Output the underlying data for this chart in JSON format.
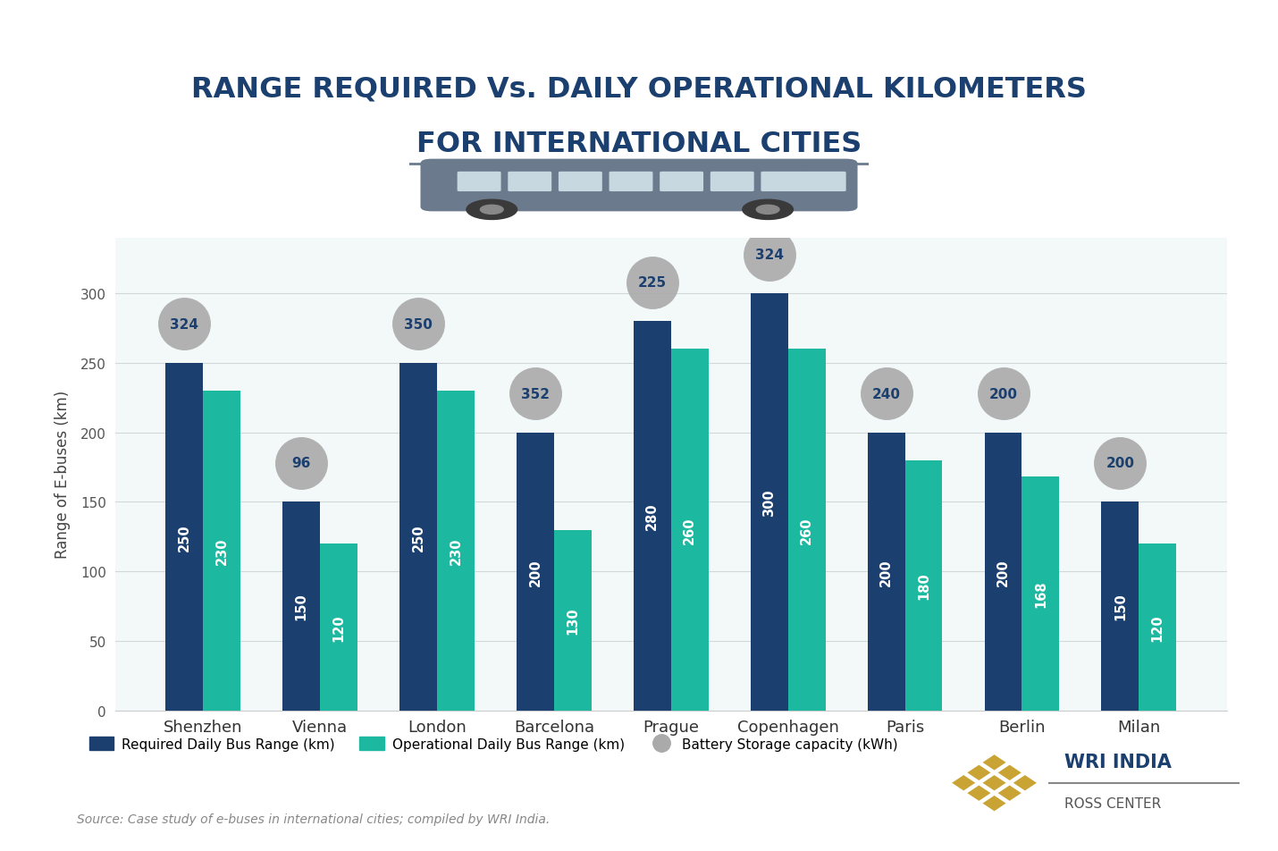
{
  "title_line1": "RANGE REQUIRED Vs. DAILY OPERATIONAL KILOMETERS",
  "title_line2": "FOR INTERNATIONAL CITIES",
  "cities": [
    "Shenzhen",
    "Vienna",
    "London",
    "Barcelona",
    "Prague",
    "Copenhagen",
    "Paris",
    "Berlin",
    "Milan"
  ],
  "required_range": [
    250,
    150,
    250,
    200,
    280,
    300,
    200,
    200,
    150
  ],
  "operational_range": [
    230,
    120,
    230,
    130,
    260,
    260,
    180,
    168,
    120
  ],
  "battery_capacity": [
    324,
    96,
    350,
    352,
    225,
    324,
    240,
    200,
    200
  ],
  "bar_color_required": "#1b3f6e",
  "bar_color_operational": "#1cb8a0",
  "bubble_color": "#aaaaaa",
  "bubble_text_color": "#1b3f6e",
  "ylabel": "Range of E-buses (km)",
  "ylim": [
    0,
    340
  ],
  "yticks": [
    0,
    50,
    100,
    150,
    200,
    250,
    300
  ],
  "legend_required": "Required Daily Bus Range (km)",
  "legend_operational": "Operational Daily Bus Range (km)",
  "legend_battery": "Battery Storage capacity (kWh)",
  "source_text": "Source: Case study of e-buses in international cities; compiled by WRI India.",
  "background_color": "#ffffff",
  "bar_width": 0.32,
  "title_color": "#1b3f6e",
  "title_fontsize": 23,
  "bar_value_fontsize": 10.5,
  "bubble_fontsize": 11,
  "grid_color": "#d0d0d0",
  "wri_gold": "#c9a435",
  "wri_text_color": "#1b3f6e",
  "map_color": "#d6eeeb"
}
